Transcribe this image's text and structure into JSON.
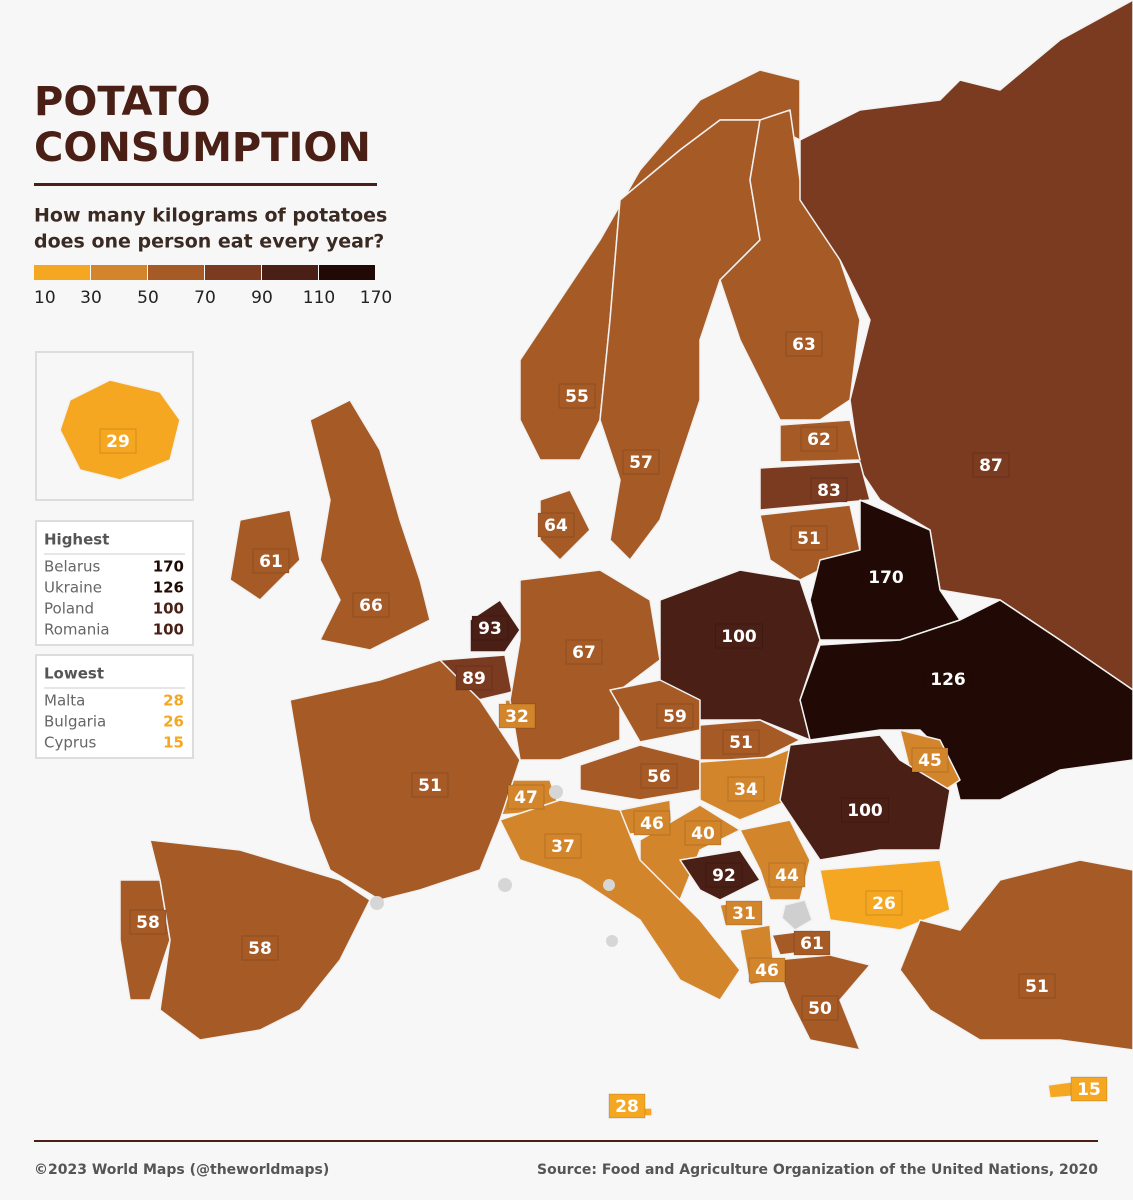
{
  "title": [
    "POTATO",
    "CONSUMPTION"
  ],
  "subtitle": [
    "How many kilograms of potatoes",
    "does one person eat every year?"
  ],
  "legend": {
    "breaks": [
      10,
      30,
      50,
      70,
      90,
      110,
      170
    ],
    "colors": [
      "#f6a722",
      "#d3852b",
      "#a65b27",
      "#7b3b21",
      "#4a1f15",
      "#210a06"
    ]
  },
  "regions": [
    29,
    55,
    57,
    63,
    87,
    62,
    83,
    51,
    170,
    126,
    100,
    64,
    61,
    66,
    93,
    89,
    32,
    67,
    59,
    51,
    56,
    34,
    45,
    100,
    47,
    46,
    40,
    51,
    37,
    92,
    44,
    26,
    31,
    61,
    46,
    50,
    51,
    58,
    58,
    28,
    15
  ],
  "highest": {
    "title": "Highest",
    "rows": [
      {
        "name": "Belarus",
        "value": 170
      },
      {
        "name": "Ukraine",
        "value": 126
      },
      {
        "name": "Poland",
        "value": 100
      },
      {
        "name": "Romania",
        "value": 100
      }
    ]
  },
  "lowest": {
    "title": "Lowest",
    "rows": [
      {
        "name": "Malta",
        "value": 28
      },
      {
        "name": "Bulgaria",
        "value": 26
      },
      {
        "name": "Cyprus",
        "value": 15
      }
    ]
  },
  "footer": {
    "credit": "©2023 World Maps (@theworldmaps)",
    "source": "Source: Food and Agriculture Organization of the United Nations, 2020"
  }
}
